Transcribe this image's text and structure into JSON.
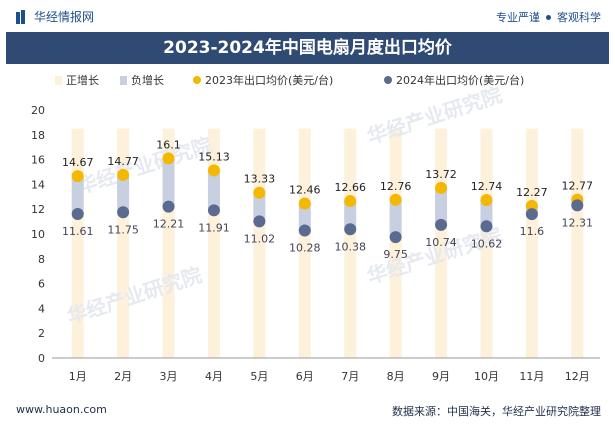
{
  "header": {
    "logo_text": "华经情报网",
    "right_text_1": "专业严谨",
    "right_text_2": "客观科学"
  },
  "title": "2023-2024年中国电扇月度出口均价",
  "footer": {
    "left_text": "www.huaon.com",
    "right_text": "数据来源：中国海关，华经产业研究院整理"
  },
  "watermarks": [
    "华经产业研究院",
    "华经产业研究院",
    "华经产业研究院",
    "华经产业研究院"
  ],
  "colors": {
    "series_2023": "#f5b800",
    "series_2024": "#5a6a90",
    "bar": "#c7cfe0",
    "column_bg": "#fdf1dc",
    "title_bg": "#2f4a73"
  },
  "chart_data": {
    "type": "scatter",
    "categories": [
      "1月",
      "2月",
      "3月",
      "4月",
      "5月",
      "6月",
      "7月",
      "8月",
      "9月",
      "10月",
      "11月",
      "12月"
    ],
    "legend": [
      "正增长",
      "负增长",
      "2023年出口均价(美元/台)",
      "2024年出口均价(美元/台)"
    ],
    "series": [
      {
        "name": "2023年出口均价(美元/台)",
        "values": [
          14.67,
          14.77,
          16.1,
          15.13,
          13.33,
          12.46,
          12.66,
          12.76,
          13.72,
          12.74,
          12.27,
          12.77
        ]
      },
      {
        "name": "2024年出口均价(美元/台)",
        "values": [
          11.61,
          11.75,
          12.21,
          11.91,
          11.02,
          10.28,
          10.38,
          9.75,
          10.74,
          10.62,
          11.6,
          12.31
        ]
      }
    ],
    "data_labels_2023": [
      "14.67",
      "14.77",
      "16.1",
      "15.13",
      "13.33",
      "12.46",
      "12.66",
      "12.76",
      "13.72",
      "12.74",
      "12.27",
      "12.77"
    ],
    "data_labels_2024": [
      "11.61",
      "11.75",
      "12.21",
      "11.91",
      "11.02",
      "10.28",
      "10.38",
      "9.75",
      "10.74",
      "10.62",
      "11.6",
      "12.31"
    ],
    "yticks": [
      "0",
      "2",
      "4",
      "6",
      "8",
      "10",
      "12",
      "14",
      "16",
      "18",
      "20"
    ],
    "ylim": [
      0,
      20
    ],
    "legend_position": "top"
  }
}
